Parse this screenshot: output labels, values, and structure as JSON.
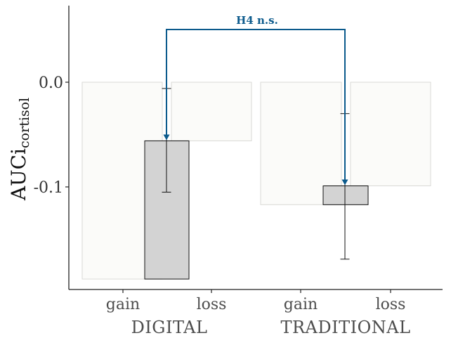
{
  "chart_data": {
    "type": "bar",
    "title": "",
    "xlabel": "",
    "ylabel": "AUCi",
    "ylabel_subscript": "cortisol",
    "ylim": [
      -0.19,
      0.07
    ],
    "yticks": [
      0.0,
      -0.1
    ],
    "ytick_labels": [
      "0.0",
      "-0.1"
    ],
    "groups": [
      "DIGITAL",
      "TRADITIONAL"
    ],
    "categories": [
      "gain",
      "loss",
      "gain",
      "loss"
    ],
    "background_bars": {
      "values": [
        -0.188,
        -0.056,
        -0.117,
        -0.099
      ],
      "color": "#fbfbf9",
      "edge": "#d9d9d6"
    },
    "highlight_bars": {
      "values": [
        -0.188,
        -0.056,
        -0.099,
        -0.117
      ],
      "anchor_category_index": [
        1,
        1,
        3,
        3
      ],
      "color": "#d3d3d3",
      "edge": "#111111"
    },
    "error_bars": [
      {
        "center": -0.056,
        "low": -0.105,
        "high": -0.006
      },
      {
        "center": -0.099,
        "low": -0.169,
        "high": -0.03
      }
    ],
    "annotation": {
      "text": "H4 n.s.",
      "color": "#0b5a8c",
      "from": "DIGITAL",
      "to": "TRADITIONAL"
    },
    "grid": false,
    "legend": "none"
  }
}
